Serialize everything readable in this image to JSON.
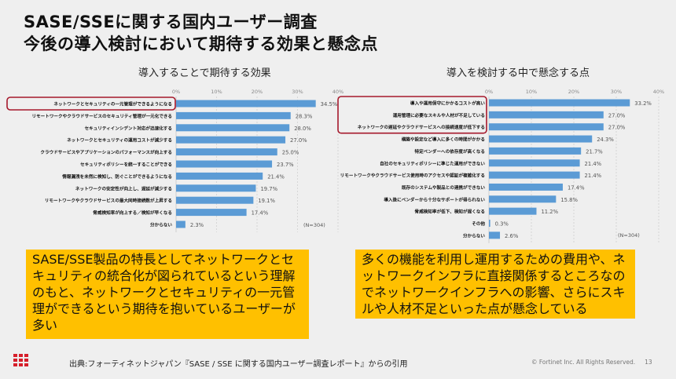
{
  "title": {
    "line1": "SASE/SSEに関する国内ユーザー調査",
    "line2": "今後の導入検討において期待する効果と懸念点"
  },
  "chart_data": [
    {
      "type": "bar",
      "orientation": "horizontal",
      "title": "導入することで期待する効果",
      "xlim": [
        0,
        40
      ],
      "ticks": [
        "0%",
        "10%",
        "20%",
        "30%",
        "40%"
      ],
      "note": "(N=304)",
      "bar_color": "#5B9BD5",
      "highlight_color": "#A5182B",
      "highlighted": [
        0
      ],
      "categories": [
        "ネットワークとセキュリティの一元管理ができるようになる",
        "リモートワークやクラウドサービスのセキュリティ管理が一元化できる",
        "セキュリティインシデント対応が迅速化する",
        "ネットワークとセキュリティの運用コストが減少する",
        "クラウドサービスやアプリケーションのパフォーマンスが向上する",
        "セキュリティポリシーを統一することができる",
        "情報漏洩を未然に検知し、防ぐことができるようになる",
        "ネットワークの安定性が向上し、遅延が減少する",
        "リモートワークやクラウドサービスの最大同時接続数が上昇する",
        "脅威検知率が向上する／検知が早くなる",
        "分からない"
      ],
      "values": [
        34.5,
        28.3,
        28.0,
        27.0,
        25.0,
        23.7,
        21.4,
        19.7,
        19.1,
        17.4,
        2.3
      ],
      "labels": [
        "34.5%",
        "28.3%",
        "28.0%",
        "27.0%",
        "25.0%",
        "23.7%",
        "21.4%",
        "19.7%",
        "19.1%",
        "17.4%",
        "2.3%"
      ]
    },
    {
      "type": "bar",
      "orientation": "horizontal",
      "title": "導入を検討する中で懸念する点",
      "xlim": [
        0,
        40
      ],
      "ticks": [
        "0%",
        "10%",
        "20%",
        "30%",
        "40%"
      ],
      "note": "(N=304)",
      "bar_color": "#5B9BD5",
      "highlight_color": "#A5182B",
      "highlighted": [
        0,
        1,
        2
      ],
      "categories": [
        "導入や運用保守にかかるコストが高い",
        "運用管理に必要なスキルや人材が不足している",
        "ネットワークの遅延やクラウドサービスへの接続速度が低下する",
        "構築や設定など導入に多くの時間がかかる",
        "特定ベンダーへの依存度が高くなる",
        "自社のセキュリティポリシーに準じた運用ができない",
        "リモートワークやクラウドサービス使用時のアクセスや認証が複雑化する",
        "既存のシステムや製品との連携ができない",
        "導入後にベンダーから十分なサポートが得られない",
        "脅威検知率が低下、検知が遅くなる",
        "その他",
        "分からない"
      ],
      "values": [
        33.2,
        27.0,
        27.0,
        24.3,
        21.7,
        21.4,
        21.4,
        17.4,
        15.8,
        11.2,
        0.3,
        2.6
      ],
      "labels": [
        "33.2%",
        "27.0%",
        "27.0%",
        "24.3%",
        "21.7%",
        "21.4%",
        "21.4%",
        "17.4%",
        "15.8%",
        "11.2%",
        "0.3%",
        "2.6%"
      ]
    }
  ],
  "callouts": {
    "left": "SASE/SSE製品の特長としてネットワークとセキュリティの統合化が図られているという理解のもと、ネットワークとセキュリティの一元管理ができるという期待を抱いているユーザーが多い",
    "right": "多くの機能を利用し運用するための費用や、ネットワークインフラに直接関係するところなのでネットワークインフラへの影響、さらにスキルや人材不足といった点が懸念している",
    "color": "#FFC000"
  },
  "footer": {
    "source": "出典:フォーティネットジャパン『SASE / SSE に関する国内ユーザー調査レポート』からの引用",
    "copyright": "© Fortinet Inc. All Rights Reserved.",
    "page": "13"
  }
}
